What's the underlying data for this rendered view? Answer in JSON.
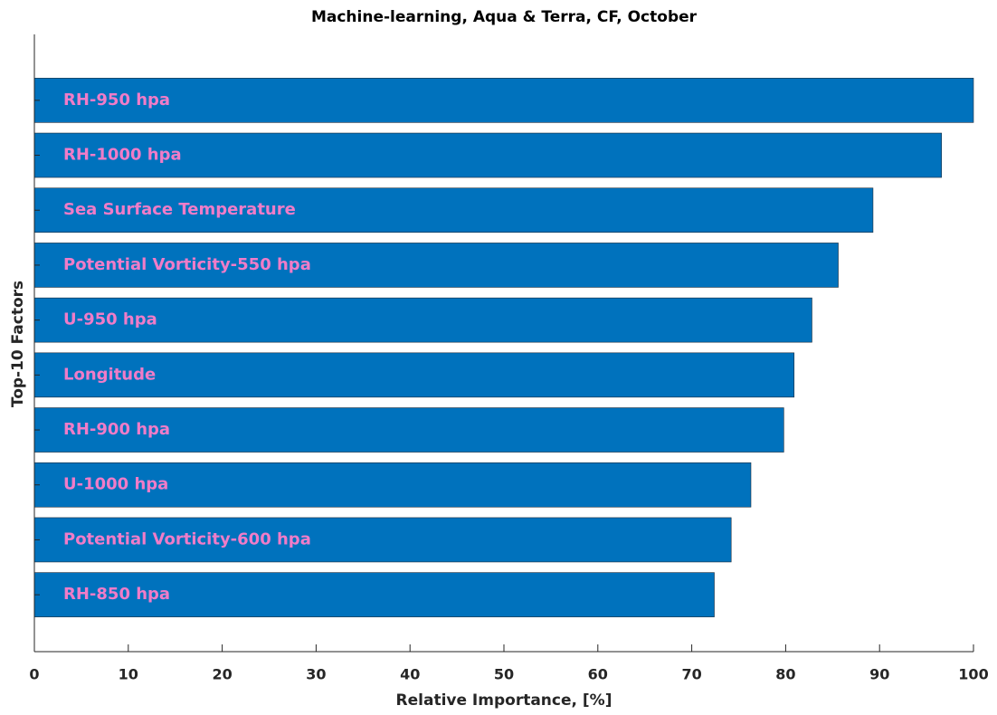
{
  "chart_data": {
    "type": "barh",
    "title": "Machine-learning, Aqua & Terra, CF, October",
    "xlabel": "Relative Importance, [%]",
    "ylabel": "Top-10 Factors",
    "categories": [
      "RH-950 hpa",
      "RH-1000 hpa",
      "Sea Surface Temperature",
      "Potential Vorticity-550 hpa",
      "U-950 hpa",
      "Longitude",
      "RH-900 hpa",
      "U-1000 hpa",
      "Potential Vorticity-600 hpa",
      "RH-850 hpa"
    ],
    "values": [
      100,
      96.6,
      89.3,
      85.6,
      82.8,
      80.9,
      79.8,
      76.3,
      74.2,
      72.4
    ],
    "color": "#0072bd",
    "label_color": "#f07cc8",
    "xlim": [
      0,
      100
    ],
    "xticks": [
      0,
      10,
      20,
      30,
      40,
      50,
      60,
      70,
      80,
      90,
      100
    ]
  }
}
